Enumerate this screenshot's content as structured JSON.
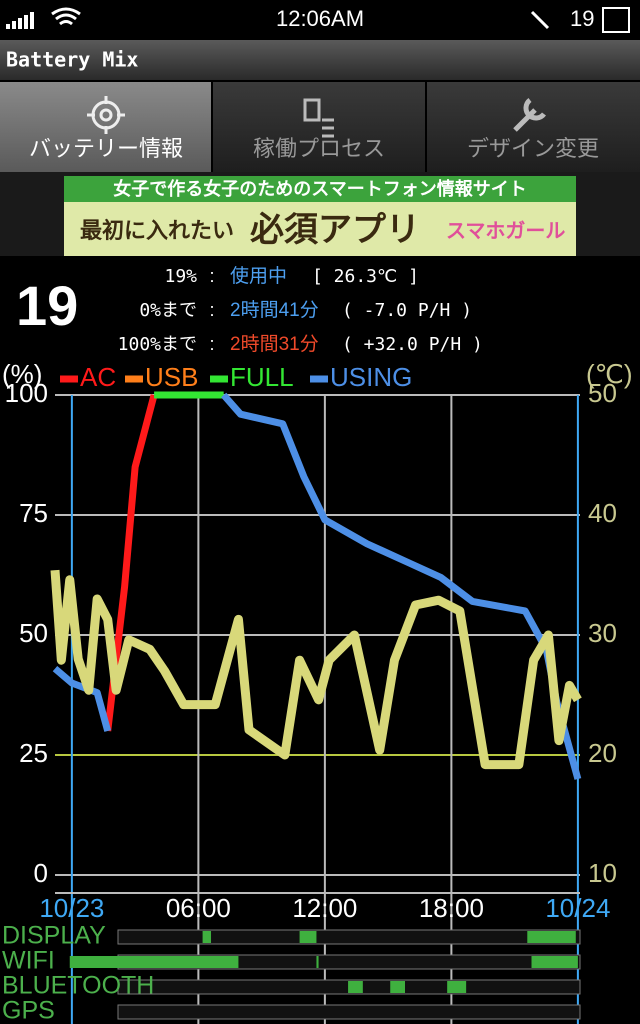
{
  "status_bar": {
    "time": "12:06AM",
    "battery": "19"
  },
  "app_title": "Battery Mix",
  "tabs": [
    "バッテリー情報",
    "稼働プロセス",
    "デザイン変更"
  ],
  "banner": {
    "tagline": "女子で作る女子のためのスマートフォン情報サイト",
    "lead": "最初に入れたい",
    "title": "必須アプリ",
    "brand": "スマホガール"
  },
  "info": {
    "level": "19",
    "rows": [
      [
        "19%",
        ":",
        "使用中",
        "[ 26.3℃ ]"
      ],
      [
        "0%まで",
        ":",
        "2時間41分",
        "( -7.0 P/H )"
      ],
      [
        "100%まで",
        ":",
        "2時間31分",
        "( +32.0 P/H )"
      ]
    ]
  },
  "chart_data": {
    "type": "line",
    "y_label": "(%)",
    "y2_label": "(℃)",
    "xlim": [
      -0.8,
      24.1
    ],
    "xticks": [
      {
        "value": 0,
        "label": "10/23"
      },
      {
        "value": 6,
        "label": "06:00"
      },
      {
        "value": 12,
        "label": "12:00"
      },
      {
        "value": 18,
        "label": "18:00"
      },
      {
        "value": 24,
        "label": "10/24"
      }
    ],
    "ylim": [
      0,
      100
    ],
    "yticks": [
      0,
      25,
      50,
      75,
      100
    ],
    "y2lim": [
      10,
      50
    ],
    "y2ticks": [
      10,
      20,
      30,
      40,
      50
    ],
    "alert_line": 25,
    "grid": true,
    "series": [
      {
        "name": "AC",
        "color": "#ff1a1a",
        "x": [
          1.7,
          2.5,
          3,
          3.9
        ],
        "values": [
          30,
          60,
          85,
          100
        ]
      },
      {
        "name": "USB",
        "color": "#ff7f1a",
        "x": [],
        "values": []
      },
      {
        "name": "FULL",
        "color": "#33e633",
        "x": [
          3.9,
          7.2
        ],
        "values": [
          100,
          100
        ]
      },
      {
        "name": "USING",
        "color": "#4d8fe6",
        "x": [
          -0.8,
          0,
          1.2,
          1.7,
          null,
          7.2,
          8,
          10,
          11,
          12,
          14,
          16,
          17.5,
          19,
          21.5,
          22.5,
          23,
          24
        ],
        "values": [
          43,
          40,
          38,
          30,
          null,
          100,
          96,
          94,
          83,
          74,
          69,
          65,
          62,
          57,
          55,
          47,
          36,
          20
        ]
      },
      {
        "name": "TEMP",
        "color": "#d8d87a",
        "axis": "y2",
        "legend": false,
        "x": [
          -0.8,
          -0.5,
          -0.1,
          0.3,
          0.8,
          1.2,
          1.7,
          2.1,
          2.7,
          3.7,
          4.4,
          5.3,
          6.8,
          7.9,
          8.4,
          10.1,
          10.8,
          11.7,
          12.2,
          13.4,
          14.6,
          15.3,
          16.3,
          17.4,
          18.4,
          19.6,
          21.2,
          21.9,
          22.6,
          23.1,
          23.6,
          24
        ],
        "values": [
          35.4,
          27.9,
          34.6,
          28,
          25.4,
          33,
          31.3,
          25.4,
          29.6,
          28.8,
          27,
          24.2,
          24.2,
          31.3,
          22.1,
          20,
          27.9,
          24.6,
          27.9,
          30,
          20.4,
          27.9,
          32.5,
          32.9,
          32,
          19.2,
          19.2,
          27.9,
          30,
          21.2,
          25.8,
          24.6
        ]
      }
    ]
  },
  "activity": {
    "rows": [
      {
        "name": "DISPLAY",
        "on": [
          [
            6.2,
            6.6
          ],
          [
            10.8,
            11.6
          ],
          [
            21.6,
            23.9
          ]
        ]
      },
      {
        "name": "WIFI",
        "on": [
          [
            -0.1,
            7.9
          ],
          [
            11.6,
            11.7
          ],
          [
            21.8,
            24
          ]
        ]
      },
      {
        "name": "BLUETOOTH",
        "on": [
          [
            13.1,
            13.8
          ],
          [
            15.1,
            15.8
          ],
          [
            17.8,
            18.7
          ]
        ]
      },
      {
        "name": "GPS",
        "on": []
      }
    ]
  }
}
